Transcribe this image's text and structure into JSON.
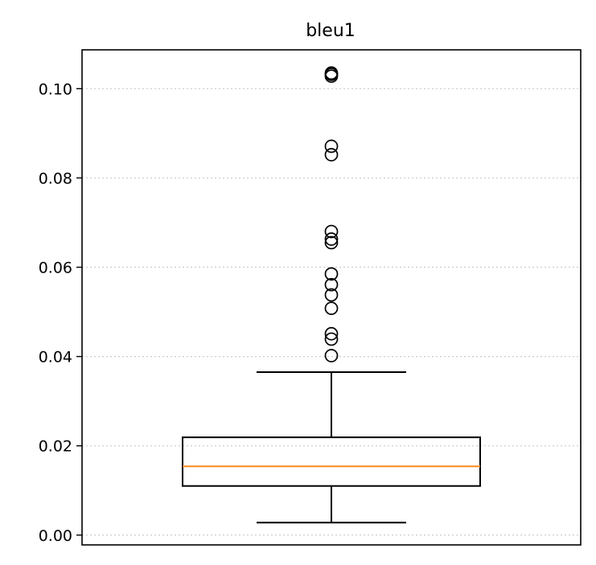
{
  "chart_data": {
    "type": "box",
    "title": "bleu1",
    "xlabel": "",
    "ylabel": "",
    "ylim": [
      -0.0022,
      0.1087
    ],
    "yticks": [
      0.0,
      0.02,
      0.04,
      0.06,
      0.08,
      0.1
    ],
    "ytick_labels": [
      "0.00",
      "0.02",
      "0.04",
      "0.06",
      "0.08",
      "0.10"
    ],
    "grid": "y, dotted",
    "box": {
      "whisker_low": 0.0028,
      "q1": 0.011,
      "median": 0.0154,
      "q3": 0.0219,
      "whisker_high": 0.0365
    },
    "outliers": [
      0.0402,
      0.0439,
      0.0451,
      0.0508,
      0.0538,
      0.0561,
      0.0585,
      0.0655,
      0.0663,
      0.068,
      0.0852,
      0.0871,
      0.1028,
      0.1032,
      0.1035
    ],
    "colors": {
      "median": "#ff8c1a",
      "box": "#000000",
      "grid": "#cccccc"
    }
  }
}
